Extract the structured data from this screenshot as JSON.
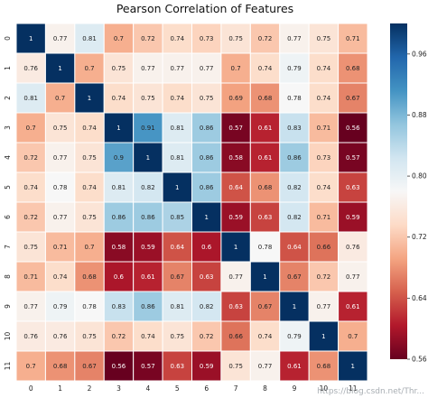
{
  "chart_data": {
    "type": "heatmap",
    "title": "Pearson Correlation of Features",
    "xlabel": "",
    "ylabel": "",
    "x_categories": [
      "0",
      "1",
      "2",
      "3",
      "4",
      "5",
      "6",
      "7",
      "8",
      "9",
      "10",
      "11"
    ],
    "y_categories": [
      "0",
      "1",
      "2",
      "3",
      "4",
      "5",
      "6",
      "7",
      "8",
      "9",
      "10",
      "11"
    ],
    "values": [
      [
        1,
        0.77,
        0.81,
        0.7,
        0.72,
        0.74,
        0.73,
        0.75,
        0.72,
        0.77,
        0.75,
        0.71
      ],
      [
        0.76,
        1,
        0.7,
        0.75,
        0.77,
        0.77,
        0.77,
        0.7,
        0.74,
        0.79,
        0.74,
        0.68
      ],
      [
        0.81,
        0.7,
        1,
        0.74,
        0.75,
        0.74,
        0.75,
        0.69,
        0.68,
        0.78,
        0.74,
        0.67
      ],
      [
        0.7,
        0.75,
        0.74,
        1,
        0.91,
        0.81,
        0.86,
        0.57,
        0.61,
        0.83,
        0.71,
        0.56
      ],
      [
        0.72,
        0.77,
        0.75,
        0.9,
        1,
        0.81,
        0.86,
        0.58,
        0.61,
        0.86,
        0.73,
        0.57
      ],
      [
        0.74,
        0.78,
        0.74,
        0.81,
        0.82,
        1,
        0.86,
        0.64,
        0.68,
        0.82,
        0.74,
        0.63
      ],
      [
        0.72,
        0.77,
        0.75,
        0.86,
        0.86,
        0.85,
        1,
        0.59,
        0.63,
        0.82,
        0.71,
        0.59
      ],
      [
        0.75,
        0.71,
        0.7,
        0.58,
        0.59,
        0.64,
        0.6,
        1,
        0.78,
        0.64,
        0.66,
        0.76
      ],
      [
        0.71,
        0.74,
        0.68,
        0.6,
        0.61,
        0.67,
        0.63,
        0.77,
        1,
        0.67,
        0.72,
        0.77
      ],
      [
        0.77,
        0.79,
        0.78,
        0.83,
        0.86,
        0.81,
        0.82,
        0.63,
        0.67,
        1,
        0.77,
        0.61
      ],
      [
        0.76,
        0.76,
        0.75,
        0.72,
        0.74,
        0.75,
        0.72,
        0.66,
        0.74,
        0.79,
        1,
        0.7
      ],
      [
        0.7,
        0.68,
        0.67,
        0.56,
        0.57,
        0.63,
        0.59,
        0.75,
        0.77,
        0.61,
        0.68,
        1
      ]
    ],
    "colorbar": {
      "range": [
        0.56,
        1.0
      ],
      "ticks": [
        "0.96",
        "0.88",
        "0.80",
        "0.72",
        "0.64",
        "0.56"
      ],
      "colormap": "RdBu",
      "low_color": "#67001f",
      "mid_color": "#f7f7f7",
      "high_color": "#053061"
    },
    "grid_lines": "white"
  },
  "watermark": "https://blog.csdn.net/Thr..."
}
